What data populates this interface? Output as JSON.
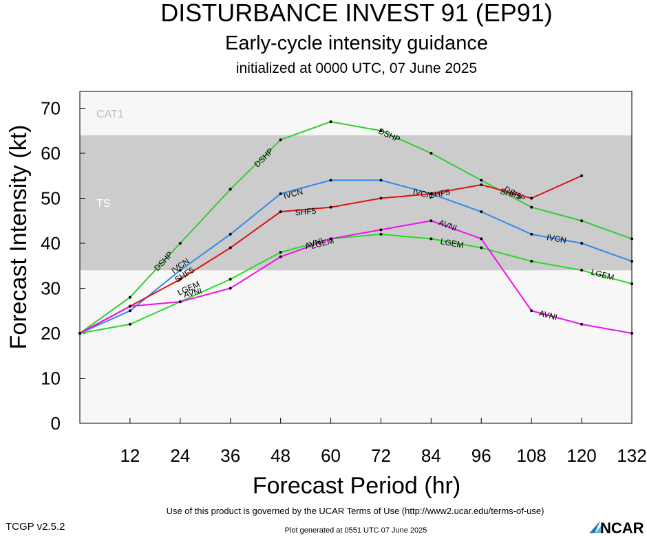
{
  "header": {
    "title": "DISTURBANCE INVEST 91 (EP91)",
    "subtitle": "Early-cycle intensity guidance",
    "init_line": "initialized at 0000 UTC, 07 June 2025"
  },
  "footer": {
    "terms": "Use of this product is governed by the UCAR Terms of Use (http://www2.ucar.edu/terms-of-use)",
    "version": "TCGP v2.5.2",
    "generated": "Plot generated at 0551 UTC   07 June 2025",
    "logo_text": "NCAR"
  },
  "chart_data": {
    "type": "line",
    "xlabel": "Forecast Period (hr)",
    "ylabel": "Forecast Intensity (kt)",
    "xlim": [
      0,
      132
    ],
    "ylim": [
      0,
      70
    ],
    "xticks": [
      12,
      24,
      36,
      48,
      60,
      72,
      84,
      96,
      108,
      120,
      132
    ],
    "yticks": [
      0,
      10,
      20,
      30,
      40,
      50,
      60,
      70
    ],
    "grid": false,
    "bands": [
      {
        "label": "TS",
        "ymin": 34,
        "ymax": 64,
        "color": "#cccccc",
        "label_color": "#ffffff"
      },
      {
        "label": "CAT1",
        "ymin": 64,
        "ymax": 83,
        "color": "#f7f7f7",
        "label_color": "#bbbbbb"
      }
    ],
    "series": [
      {
        "name": "DSHP",
        "color": "#33cc33",
        "x": [
          0,
          12,
          24,
          36,
          48,
          60,
          72,
          84,
          96,
          108,
          120,
          132
        ],
        "y": [
          20,
          28,
          40,
          52,
          63,
          67,
          65,
          60,
          54,
          48,
          45,
          41
        ],
        "labels": [
          {
            "text": "DSHP",
            "x": 20,
            "y": 36
          },
          {
            "text": "DSHP",
            "x": 44,
            "y": 59
          },
          {
            "text": "DSHP",
            "x": 74,
            "y": 64
          },
          {
            "text": "DSHP",
            "x": 104,
            "y": 51
          }
        ]
      },
      {
        "name": "IVCN",
        "color": "#3388ee",
        "x": [
          0,
          12,
          24,
          36,
          48,
          60,
          72,
          84,
          96,
          108,
          120,
          132
        ],
        "y": [
          20,
          25,
          34,
          42,
          51,
          54,
          54,
          51,
          47,
          42,
          40,
          36
        ],
        "labels": [
          {
            "text": "IVCN",
            "x": 24,
            "y": 35
          },
          {
            "text": "IVCN",
            "x": 51,
            "y": 51
          },
          {
            "text": "IVCN",
            "x": 82,
            "y": 51
          },
          {
            "text": "IVCN",
            "x": 114,
            "y": 41
          }
        ]
      },
      {
        "name": "SHF5",
        "color": "#dd1111",
        "x": [
          0,
          12,
          24,
          36,
          48,
          60,
          72,
          84,
          96,
          108,
          120
        ],
        "y": [
          20,
          26,
          32,
          39,
          47,
          48,
          50,
          51,
          53,
          50,
          55
        ],
        "labels": [
          {
            "text": "SHF5",
            "x": 25,
            "y": 33
          },
          {
            "text": "SHF5",
            "x": 54,
            "y": 47
          },
          {
            "text": "SHF5",
            "x": 86,
            "y": 51
          },
          {
            "text": "SHF5",
            "x": 103,
            "y": 51
          }
        ]
      },
      {
        "name": "LGEM",
        "color": "#22dd22",
        "x": [
          0,
          12,
          24,
          36,
          48,
          60,
          72,
          84,
          96,
          108,
          120,
          132
        ],
        "y": [
          20,
          22,
          27,
          32,
          38,
          41,
          42,
          41,
          39,
          36,
          34,
          31
        ],
        "labels": [
          {
            "text": "LGEM",
            "x": 26,
            "y": 30
          },
          {
            "text": "LGEM",
            "x": 58,
            "y": 40
          },
          {
            "text": "LGEM",
            "x": 89,
            "y": 40
          },
          {
            "text": "LGEM",
            "x": 125,
            "y": 33
          }
        ]
      },
      {
        "name": "AVNI",
        "color": "#ee11ee",
        "x": [
          0,
          12,
          24,
          36,
          48,
          60,
          72,
          84,
          96,
          108,
          120,
          132
        ],
        "y": [
          20,
          26,
          27,
          30,
          37,
          41,
          43,
          45,
          41,
          25,
          22,
          20
        ],
        "labels": [
          {
            "text": "AVNI",
            "x": 27,
            "y": 29
          },
          {
            "text": "AVNI",
            "x": 56,
            "y": 40
          },
          {
            "text": "AVNI",
            "x": 88,
            "y": 44
          },
          {
            "text": "AVNI",
            "x": 112,
            "y": 24
          }
        ]
      }
    ]
  }
}
